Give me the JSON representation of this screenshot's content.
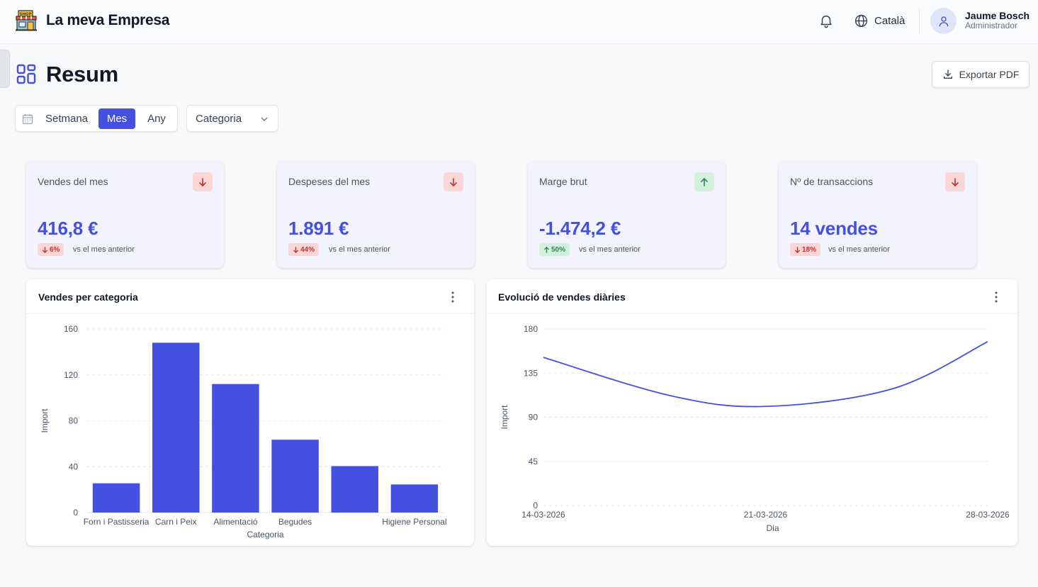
{
  "header": {
    "brand": "La meva Empresa",
    "language": "Català",
    "user_name": "Jaume Bosch",
    "user_role": "Administrador",
    "icons": {
      "logo": "shop-icon",
      "bell": "bell-icon",
      "language": "globe-icon",
      "avatar": "user-icon"
    }
  },
  "page": {
    "title": "Resum",
    "export_label": "Exportar PDF"
  },
  "filters": {
    "periods": [
      "Setmana",
      "Mes",
      "Any"
    ],
    "selected_period": "Mes",
    "category_label": "Categoria"
  },
  "kpis": [
    {
      "title": "Vendes del mes",
      "value": "416,8 €",
      "trend": "down",
      "change": "6%",
      "compare": "vs el mes anterior"
    },
    {
      "title": "Despeses del mes",
      "value": "1.891 €",
      "trend": "down",
      "change": "44%",
      "compare": "vs el mes anterior"
    },
    {
      "title": "Marge brut",
      "value": "-1.474,2 €",
      "trend": "up",
      "change": "50%",
      "compare": "vs el mes anterior"
    },
    {
      "title": "Nº de transaccions",
      "value": "14 vendes",
      "trend": "down",
      "change": "18%",
      "compare": "vs el mes anterior"
    }
  ],
  "colors": {
    "accent": "#4450e0",
    "down_bg": "#fbd6d6",
    "down_fg": "#c53030",
    "up_bg": "#d2f0dc",
    "up_fg": "#2f855a"
  },
  "bar_card": {
    "title": "Vendes per categoria"
  },
  "line_card": {
    "title": "Evolució de vendes diàries"
  },
  "chart_data": [
    {
      "type": "bar",
      "title": "Vendes per categoria",
      "xlabel": "Categoria",
      "ylabel": "Import",
      "categories": [
        "Forn i Pastisseria",
        "Carn i Peix",
        "Alimentació",
        "Begudes",
        "",
        "Higiene Personal"
      ],
      "values": [
        25.5,
        148,
        112,
        63.5,
        40.5,
        24.5
      ],
      "ylim": [
        0,
        160
      ],
      "yticks": [
        0,
        40,
        80,
        120,
        160
      ],
      "grid": true,
      "color": "#4450e0"
    },
    {
      "type": "line",
      "title": "Evolució de vendes diàries",
      "xlabel": "Dia",
      "ylabel": "Import",
      "x": [
        "14-03-2026",
        "18-03-2026",
        "21-03-2026",
        "25-03-2026",
        "28-03-2026"
      ],
      "y": [
        151,
        112,
        101,
        119,
        167
      ],
      "xticks": [
        "14-03-2026",
        "21-03-2026",
        "28-03-2026"
      ],
      "ylim": [
        0,
        180
      ],
      "yticks": [
        0,
        45,
        90,
        135,
        180
      ],
      "grid": true,
      "color": "#4450e0"
    }
  ]
}
